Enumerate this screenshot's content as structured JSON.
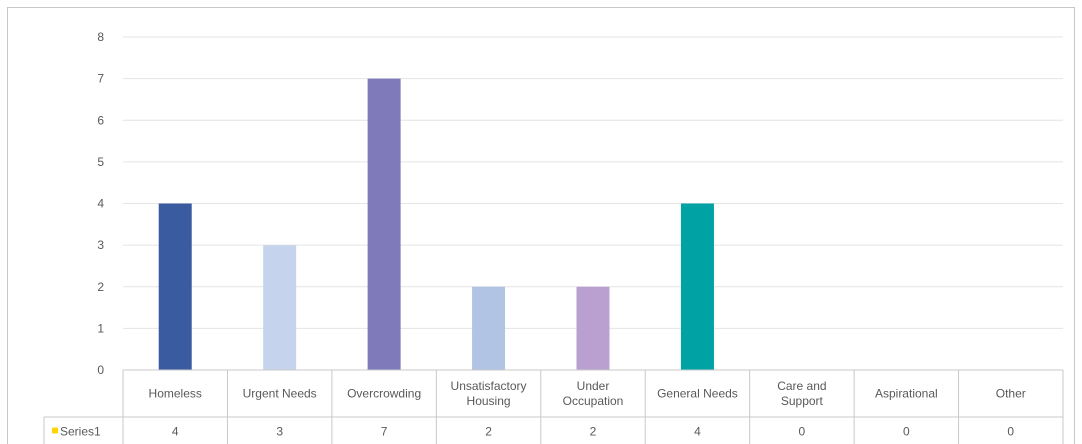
{
  "chart_data": {
    "type": "bar",
    "categories": [
      [
        "Homeless"
      ],
      [
        "Urgent Needs"
      ],
      [
        "Overcrowding"
      ],
      [
        "Unsatisfactory",
        "Housing"
      ],
      [
        "Under",
        "Occupation"
      ],
      [
        "General Needs"
      ],
      [
        "Care and",
        "Support"
      ],
      [
        "Aspirational"
      ],
      [
        "Other"
      ]
    ],
    "series": [
      {
        "name": "Series1",
        "values": [
          4,
          3,
          7,
          2,
          2,
          4,
          0,
          0,
          0
        ]
      }
    ],
    "bar_colors": [
      "#3a5b9f",
      "#c5d4ec",
      "#7f7bbb",
      "#b2c4e4",
      "#b9a0d0",
      "#00a2a3",
      "#999999",
      "#999999",
      "#999999"
    ],
    "legend_key_color": "#ffd400",
    "ylim": [
      0,
      8
    ],
    "yticks": [
      0,
      1,
      2,
      3,
      4,
      5,
      6,
      7,
      8
    ],
    "grid": true,
    "data_table": true
  }
}
